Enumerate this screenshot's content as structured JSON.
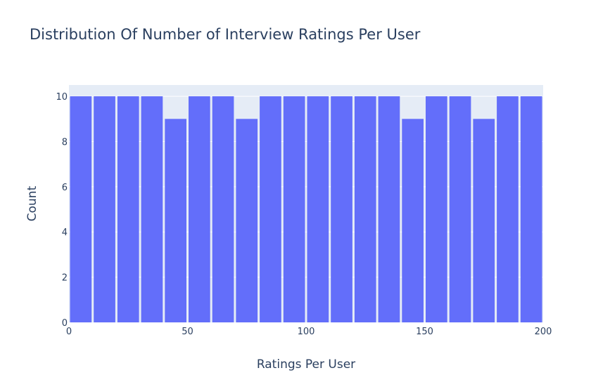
{
  "chart_data": {
    "type": "bar",
    "title": "Distribution Of Number of Interview Ratings Per User",
    "xlabel": "Ratings Per User",
    "ylabel": "Count",
    "bin_width": 10,
    "bins": [
      {
        "x0": 0,
        "x1": 10,
        "count": 10
      },
      {
        "x0": 10,
        "x1": 20,
        "count": 10
      },
      {
        "x0": 20,
        "x1": 30,
        "count": 10
      },
      {
        "x0": 30,
        "x1": 40,
        "count": 10
      },
      {
        "x0": 40,
        "x1": 50,
        "count": 9
      },
      {
        "x0": 50,
        "x1": 60,
        "count": 10
      },
      {
        "x0": 60,
        "x1": 70,
        "count": 10
      },
      {
        "x0": 70,
        "x1": 80,
        "count": 9
      },
      {
        "x0": 80,
        "x1": 90,
        "count": 10
      },
      {
        "x0": 90,
        "x1": 100,
        "count": 10
      },
      {
        "x0": 100,
        "x1": 110,
        "count": 10
      },
      {
        "x0": 110,
        "x1": 120,
        "count": 10
      },
      {
        "x0": 120,
        "x1": 130,
        "count": 10
      },
      {
        "x0": 130,
        "x1": 140,
        "count": 10
      },
      {
        "x0": 140,
        "x1": 150,
        "count": 9
      },
      {
        "x0": 150,
        "x1": 160,
        "count": 10
      },
      {
        "x0": 160,
        "x1": 170,
        "count": 10
      },
      {
        "x0": 170,
        "x1": 180,
        "count": 9
      },
      {
        "x0": 180,
        "x1": 190,
        "count": 10
      },
      {
        "x0": 190,
        "x1": 200,
        "count": 10
      }
    ],
    "xlim": [
      0,
      200
    ],
    "ylim": [
      0,
      10.5
    ],
    "x_ticks": [
      0,
      50,
      100,
      150,
      200
    ],
    "y_ticks": [
      0,
      2,
      4,
      6,
      8,
      10
    ],
    "grid": true,
    "colors": {
      "bar": "#636efa",
      "plot_background": "#e5ecf6",
      "grid": "#ffffff",
      "text": "#2a3f5f"
    }
  }
}
